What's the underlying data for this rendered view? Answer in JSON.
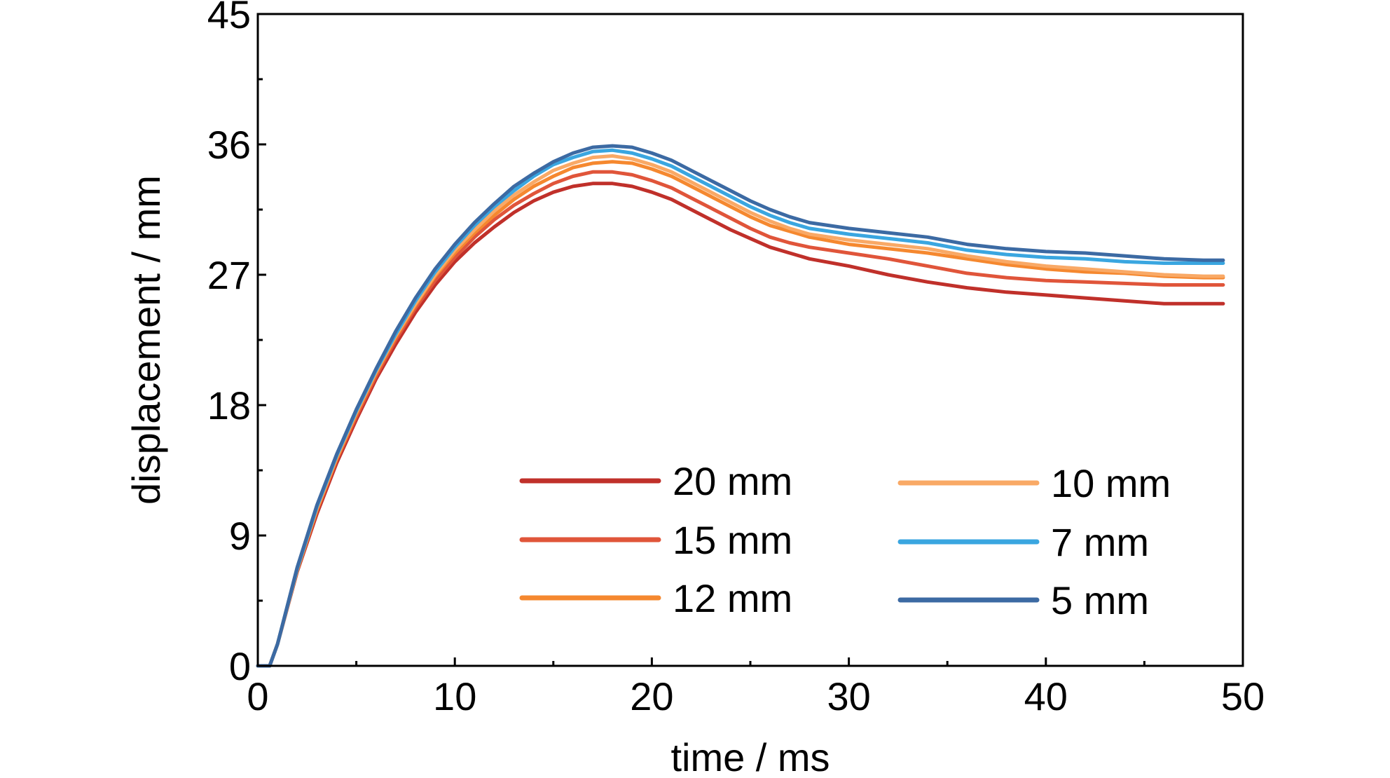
{
  "chart_data": {
    "type": "line",
    "xlabel": "time / ms",
    "ylabel": "displacement / mm",
    "xlim": [
      0,
      50
    ],
    "ylim": [
      0,
      45
    ],
    "xticks": [
      "0",
      "10",
      "20",
      "30",
      "40",
      "50"
    ],
    "yticks": [
      "0",
      "9",
      "18",
      "27",
      "36",
      "45"
    ],
    "grid": false,
    "legend_position": "bottom-right",
    "series": [
      {
        "name": "20 mm",
        "color": "#c0302a",
        "x": [
          0,
          0.6,
          1,
          2,
          3,
          4,
          5,
          6,
          7,
          8,
          9,
          10,
          11,
          12,
          13,
          14,
          15,
          16,
          17,
          18,
          19,
          20,
          21,
          22,
          23,
          24,
          25,
          26,
          27,
          28,
          30,
          32,
          34,
          36,
          38,
          40,
          42,
          44,
          46,
          48,
          49
        ],
        "y": [
          0,
          0,
          1.5,
          6.5,
          10.5,
          14,
          17,
          19.8,
          22.2,
          24.4,
          26.3,
          27.9,
          29.2,
          30.3,
          31.3,
          32.1,
          32.7,
          33.1,
          33.3,
          33.3,
          33.1,
          32.7,
          32.2,
          31.5,
          30.8,
          30.1,
          29.5,
          28.9,
          28.5,
          28.1,
          27.6,
          27.0,
          26.5,
          26.1,
          25.8,
          25.6,
          25.4,
          25.2,
          25.0,
          25.0,
          25.0
        ]
      },
      {
        "name": "15 mm",
        "color": "#e0553a",
        "x": [
          0,
          0.6,
          1,
          2,
          3,
          4,
          5,
          6,
          7,
          8,
          9,
          10,
          11,
          12,
          13,
          14,
          15,
          16,
          17,
          18,
          19,
          20,
          21,
          22,
          23,
          24,
          25,
          26,
          27,
          28,
          30,
          32,
          34,
          36,
          38,
          40,
          42,
          44,
          46,
          48,
          49
        ],
        "y": [
          0,
          0,
          1.5,
          6.6,
          10.7,
          14.2,
          17.2,
          20.0,
          22.5,
          24.7,
          26.6,
          28.2,
          29.6,
          30.8,
          31.8,
          32.6,
          33.3,
          33.8,
          34.1,
          34.1,
          33.9,
          33.5,
          33.0,
          32.3,
          31.6,
          30.9,
          30.2,
          29.6,
          29.2,
          28.9,
          28.5,
          28.1,
          27.6,
          27.1,
          26.8,
          26.6,
          26.5,
          26.4,
          26.3,
          26.3,
          26.3
        ]
      },
      {
        "name": "12 mm",
        "color": "#f5882f",
        "x": [
          0,
          0.6,
          1,
          2,
          3,
          4,
          5,
          6,
          7,
          8,
          9,
          10,
          11,
          12,
          13,
          14,
          15,
          16,
          17,
          18,
          19,
          20,
          21,
          22,
          23,
          24,
          25,
          26,
          27,
          28,
          30,
          32,
          34,
          36,
          38,
          40,
          42,
          44,
          46,
          48,
          49
        ],
        "y": [
          0,
          0,
          1.5,
          6.6,
          10.8,
          14.3,
          17.4,
          20.2,
          22.7,
          24.9,
          26.9,
          28.5,
          29.9,
          31.1,
          32.2,
          33.1,
          33.8,
          34.4,
          34.7,
          34.8,
          34.7,
          34.3,
          33.8,
          33.1,
          32.4,
          31.7,
          31.0,
          30.4,
          30.0,
          29.6,
          29.1,
          28.8,
          28.5,
          28.1,
          27.7,
          27.4,
          27.2,
          27.1,
          26.9,
          26.8,
          26.8
        ]
      },
      {
        "name": "10 mm",
        "color": "#f9a966",
        "x": [
          0,
          0.6,
          1,
          2,
          3,
          4,
          5,
          6,
          7,
          8,
          9,
          10,
          11,
          12,
          13,
          14,
          15,
          16,
          17,
          18,
          19,
          20,
          21,
          22,
          23,
          24,
          25,
          26,
          27,
          28,
          30,
          32,
          34,
          36,
          38,
          40,
          42,
          44,
          46,
          48,
          49
        ],
        "y": [
          0,
          0,
          1.5,
          6.7,
          10.9,
          14.4,
          17.5,
          20.3,
          22.8,
          25.0,
          27.0,
          28.7,
          30.1,
          31.4,
          32.5,
          33.4,
          34.2,
          34.7,
          35.1,
          35.2,
          35.0,
          34.6,
          34.1,
          33.4,
          32.7,
          32.0,
          31.3,
          30.7,
          30.2,
          29.8,
          29.4,
          29.1,
          28.8,
          28.3,
          27.9,
          27.6,
          27.4,
          27.2,
          27.0,
          26.9,
          26.9
        ]
      },
      {
        "name": "7 mm",
        "color": "#3aa6e0",
        "x": [
          0,
          0.6,
          1,
          2,
          3,
          4,
          5,
          6,
          7,
          8,
          9,
          10,
          11,
          12,
          13,
          14,
          15,
          16,
          17,
          18,
          19,
          20,
          21,
          22,
          23,
          24,
          25,
          26,
          27,
          28,
          30,
          32,
          34,
          36,
          38,
          40,
          42,
          44,
          46,
          48,
          49
        ],
        "y": [
          0,
          0,
          1.5,
          6.7,
          11.0,
          14.5,
          17.6,
          20.4,
          22.9,
          25.2,
          27.2,
          28.9,
          30.4,
          31.7,
          32.8,
          33.8,
          34.6,
          35.1,
          35.5,
          35.6,
          35.4,
          35.0,
          34.5,
          33.8,
          33.1,
          32.4,
          31.7,
          31.1,
          30.6,
          30.2,
          29.8,
          29.5,
          29.2,
          28.7,
          28.4,
          28.2,
          28.1,
          27.9,
          27.8,
          27.8,
          27.8
        ]
      },
      {
        "name": "5 mm",
        "color": "#3c6aa3",
        "x": [
          0,
          0.6,
          1,
          2,
          3,
          4,
          5,
          6,
          7,
          8,
          9,
          10,
          11,
          12,
          13,
          14,
          15,
          16,
          17,
          18,
          19,
          20,
          21,
          22,
          23,
          24,
          25,
          26,
          27,
          28,
          30,
          32,
          34,
          36,
          38,
          40,
          42,
          44,
          46,
          48,
          49
        ],
        "y": [
          0,
          0,
          1.5,
          6.8,
          11.1,
          14.6,
          17.7,
          20.5,
          23.1,
          25.4,
          27.4,
          29.1,
          30.6,
          31.9,
          33.1,
          34.0,
          34.8,
          35.4,
          35.8,
          35.9,
          35.8,
          35.4,
          34.9,
          34.2,
          33.5,
          32.8,
          32.1,
          31.5,
          31.0,
          30.6,
          30.2,
          29.9,
          29.6,
          29.1,
          28.8,
          28.6,
          28.5,
          28.3,
          28.1,
          28.0,
          28.0
        ]
      }
    ]
  }
}
